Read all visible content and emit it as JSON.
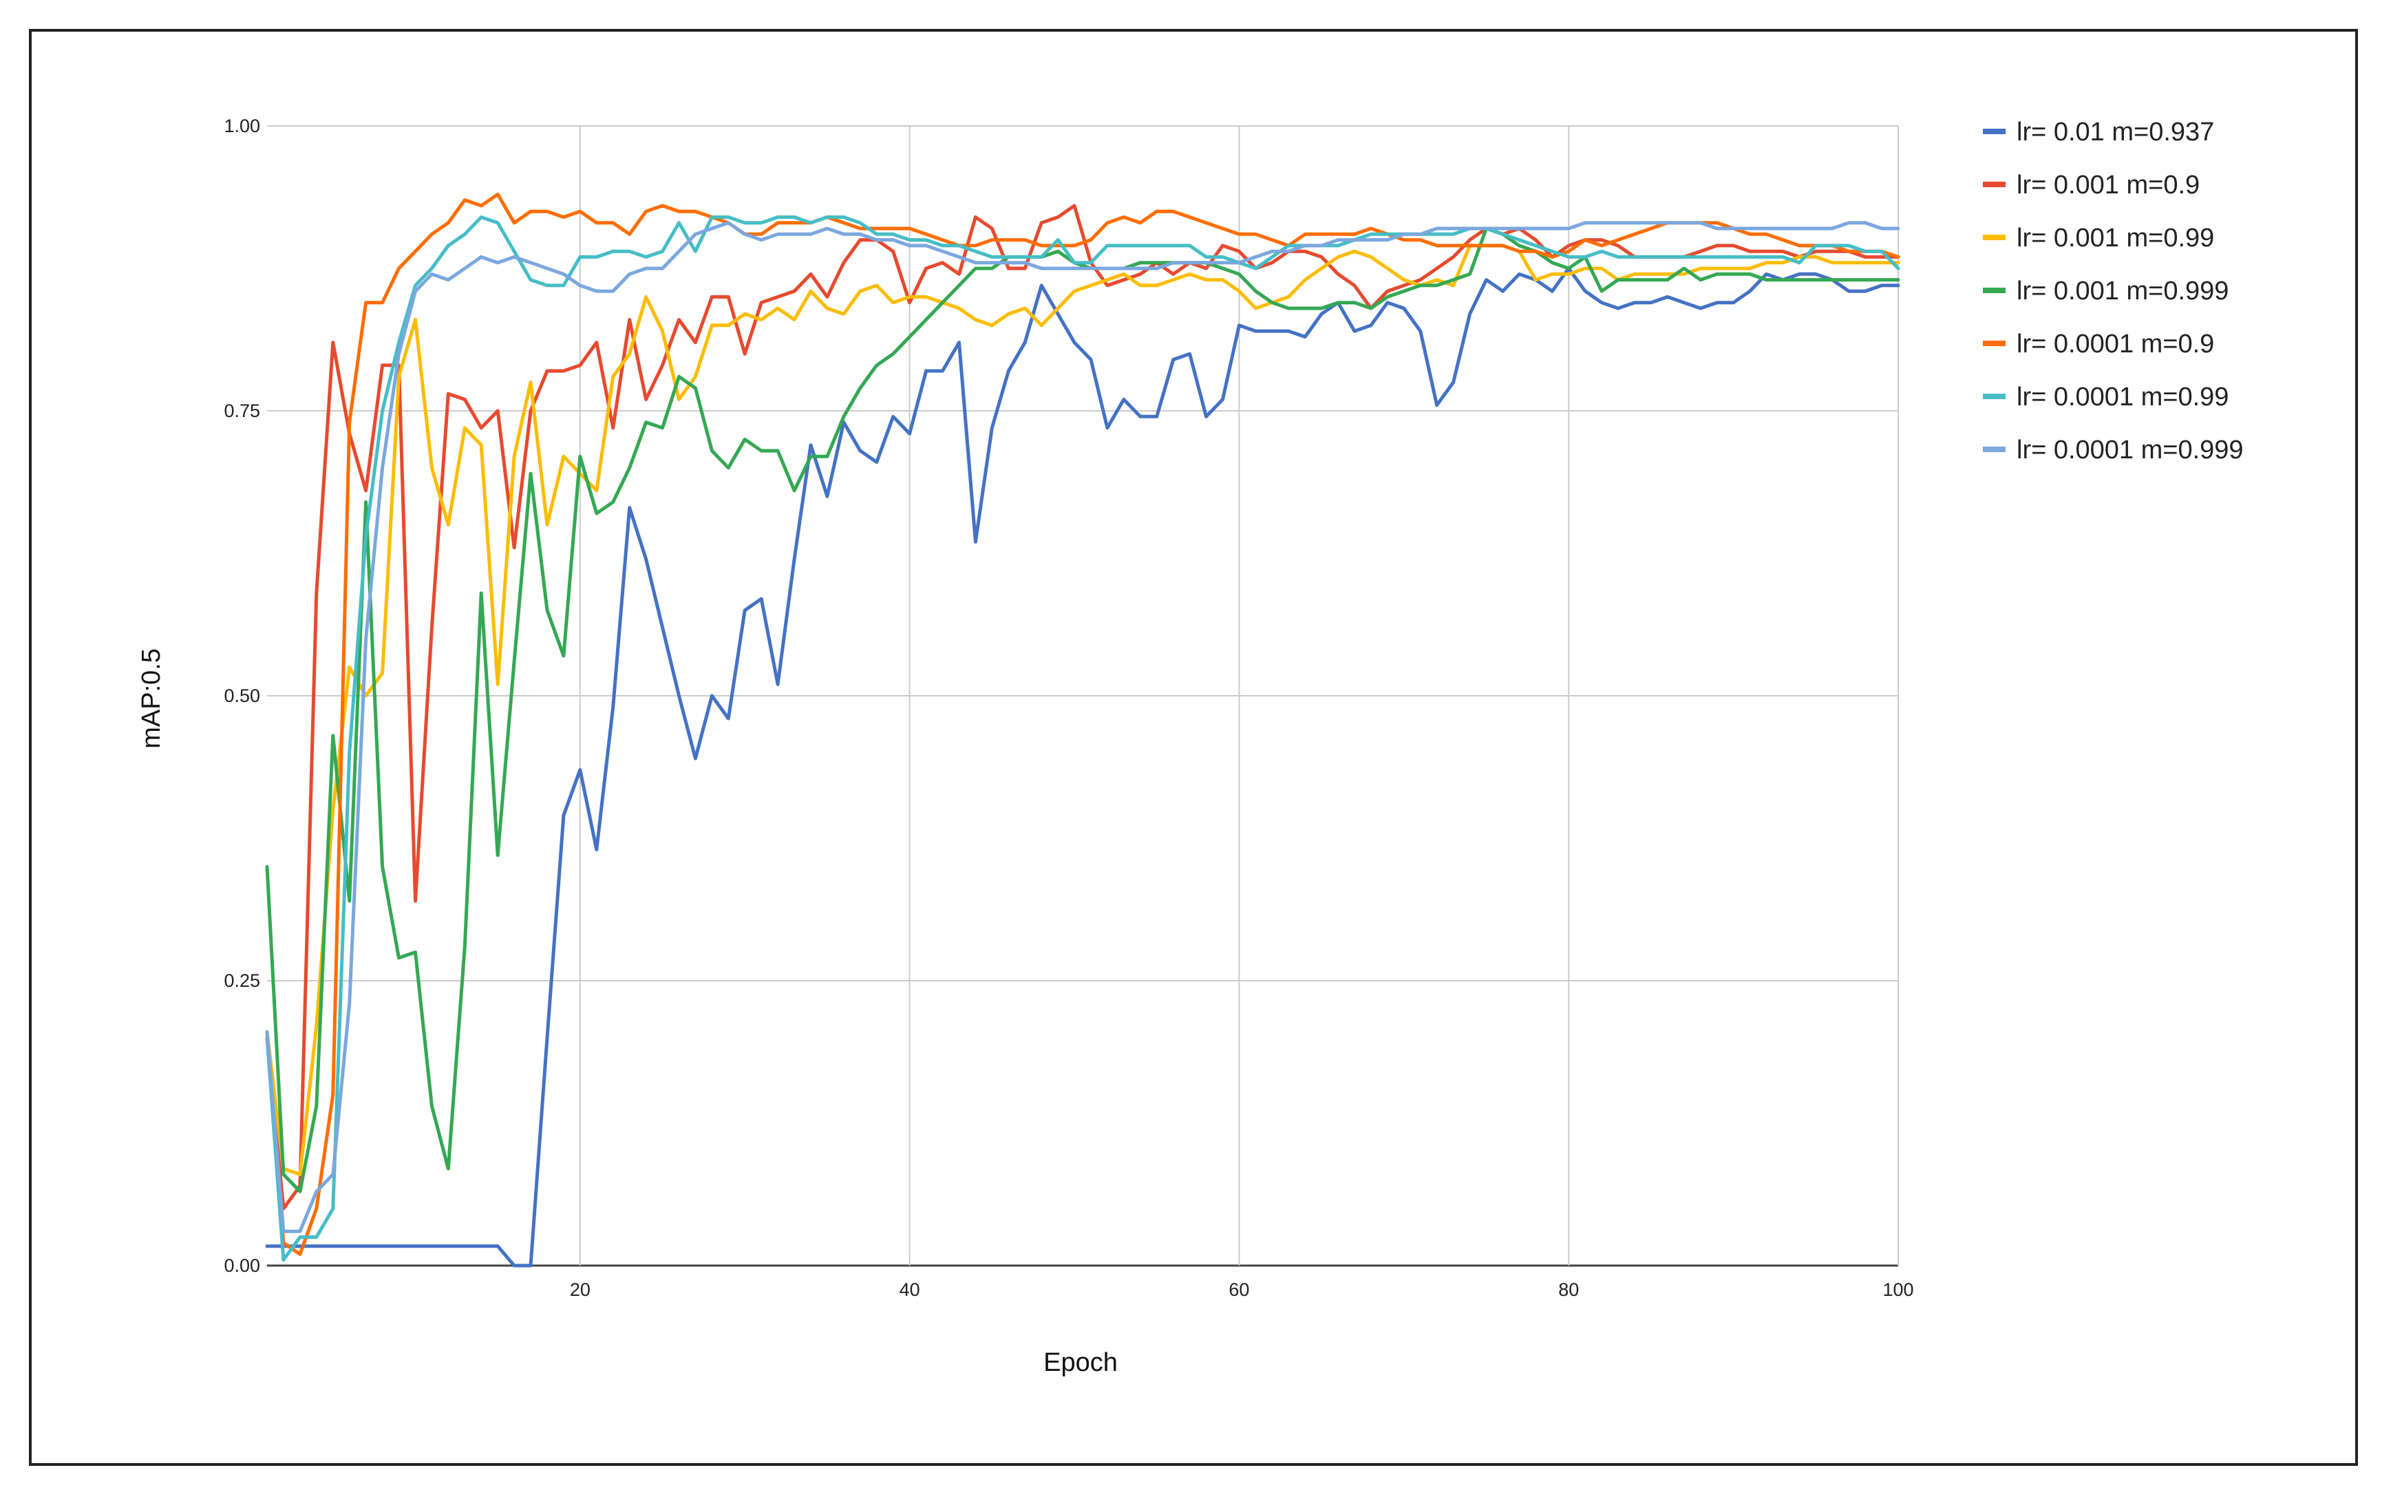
{
  "chart_data": {
    "type": "line",
    "title": "",
    "xlabel": "Epoch",
    "ylabel": "mAP:0.5",
    "xlim": [
      1,
      100
    ],
    "ylim": [
      0,
      1
    ],
    "x_ticks": [
      20,
      40,
      60,
      80,
      100
    ],
    "x_tick_labels": [
      "20",
      "40",
      "60",
      "80",
      "100"
    ],
    "y_ticks": [
      0,
      0.25,
      0.5,
      0.75,
      1.0
    ],
    "y_tick_labels": [
      "0.00",
      "0.25",
      "0.50",
      "0.75",
      "1.00"
    ],
    "grid": true,
    "legend_position": "right",
    "x": [
      1,
      2,
      3,
      4,
      5,
      6,
      7,
      8,
      9,
      10,
      11,
      12,
      13,
      14,
      15,
      16,
      17,
      18,
      19,
      20,
      21,
      22,
      23,
      24,
      25,
      26,
      27,
      28,
      29,
      30,
      31,
      32,
      33,
      34,
      35,
      36,
      37,
      38,
      39,
      40,
      41,
      42,
      43,
      44,
      45,
      46,
      47,
      48,
      49,
      50,
      51,
      52,
      53,
      54,
      55,
      56,
      57,
      58,
      59,
      60,
      61,
      62,
      63,
      64,
      65,
      66,
      67,
      68,
      69,
      70,
      71,
      72,
      73,
      74,
      75,
      76,
      77,
      78,
      79,
      80,
      81,
      82,
      83,
      84,
      85,
      86,
      87,
      88,
      89,
      90,
      91,
      92,
      93,
      94,
      95,
      96,
      97,
      98,
      99,
      100
    ],
    "series": [
      {
        "name": "lr= 0.01 m=0.937",
        "color": "#4472c4",
        "values": [
          0.017,
          0.017,
          0.017,
          0.017,
          0.017,
          0.017,
          0.017,
          0.017,
          0.017,
          0.017,
          0.017,
          0.017,
          0.017,
          0.017,
          0.017,
          0.0,
          0.0,
          0.2,
          0.395,
          0.435,
          0.365,
          0.49,
          0.665,
          0.62,
          0.56,
          0.5,
          0.445,
          0.5,
          0.48,
          0.575,
          0.585,
          0.51,
          0.62,
          0.72,
          0.675,
          0.74,
          0.715,
          0.705,
          0.745,
          0.73,
          0.785,
          0.785,
          0.81,
          0.635,
          0.735,
          0.785,
          0.81,
          0.86,
          0.835,
          0.81,
          0.795,
          0.735,
          0.76,
          0.745,
          0.745,
          0.795,
          0.8,
          0.745,
          0.76,
          0.825,
          0.82,
          0.82,
          0.82,
          0.815,
          0.835,
          0.845,
          0.82,
          0.825,
          0.845,
          0.84,
          0.82,
          0.755,
          0.775,
          0.835,
          0.865,
          0.855,
          0.87,
          0.865,
          0.855,
          0.875,
          0.855,
          0.845,
          0.84,
          0.845,
          0.845,
          0.85,
          0.845,
          0.84,
          0.845,
          0.845,
          0.855,
          0.87,
          0.865,
          0.87,
          0.87,
          0.865,
          0.855,
          0.855,
          0.86,
          0.86
        ]
      },
      {
        "name": "lr= 0.001 m=0.9",
        "color": "#e64a2f",
        "values": [
          0.2,
          0.05,
          0.07,
          0.59,
          0.81,
          0.73,
          0.68,
          0.79,
          0.79,
          0.32,
          0.56,
          0.765,
          0.76,
          0.735,
          0.75,
          0.63,
          0.75,
          0.785,
          0.785,
          0.79,
          0.81,
          0.735,
          0.83,
          0.76,
          0.79,
          0.83,
          0.81,
          0.85,
          0.85,
          0.8,
          0.845,
          0.85,
          0.855,
          0.87,
          0.85,
          0.88,
          0.9,
          0.9,
          0.89,
          0.845,
          0.875,
          0.88,
          0.87,
          0.92,
          0.91,
          0.875,
          0.875,
          0.915,
          0.92,
          0.93,
          0.88,
          0.86,
          0.865,
          0.87,
          0.88,
          0.87,
          0.88,
          0.875,
          0.895,
          0.89,
          0.875,
          0.88,
          0.89,
          0.89,
          0.885,
          0.87,
          0.86,
          0.84,
          0.855,
          0.86,
          0.865,
          0.875,
          0.885,
          0.9,
          0.91,
          0.905,
          0.91,
          0.9,
          0.885,
          0.895,
          0.9,
          0.9,
          0.895,
          0.885,
          0.885,
          0.885,
          0.885,
          0.89,
          0.895,
          0.895,
          0.89,
          0.89,
          0.89,
          0.885,
          0.89,
          0.89,
          0.89,
          0.885,
          0.885,
          0.885
        ]
      },
      {
        "name": "lr= 0.001 m=0.99",
        "color": "#fbbc04",
        "values": [
          0.205,
          0.085,
          0.08,
          0.21,
          0.4,
          0.525,
          0.5,
          0.52,
          0.78,
          0.83,
          0.7,
          0.65,
          0.735,
          0.72,
          0.51,
          0.71,
          0.775,
          0.65,
          0.71,
          0.695,
          0.68,
          0.78,
          0.8,
          0.85,
          0.82,
          0.76,
          0.78,
          0.825,
          0.825,
          0.835,
          0.83,
          0.84,
          0.83,
          0.855,
          0.84,
          0.835,
          0.855,
          0.86,
          0.845,
          0.85,
          0.85,
          0.845,
          0.84,
          0.83,
          0.825,
          0.835,
          0.84,
          0.825,
          0.84,
          0.855,
          0.86,
          0.865,
          0.87,
          0.86,
          0.86,
          0.865,
          0.87,
          0.865,
          0.865,
          0.855,
          0.84,
          0.845,
          0.85,
          0.865,
          0.875,
          0.885,
          0.89,
          0.885,
          0.875,
          0.865,
          0.86,
          0.865,
          0.86,
          0.895,
          0.895,
          0.895,
          0.89,
          0.865,
          0.87,
          0.87,
          0.875,
          0.875,
          0.865,
          0.87,
          0.87,
          0.87,
          0.87,
          0.875,
          0.875,
          0.875,
          0.875,
          0.88,
          0.88,
          0.885,
          0.885,
          0.88,
          0.88,
          0.88,
          0.88,
          0.88
        ]
      },
      {
        "name": "lr= 0.001 m=0.999",
        "color": "#34a853",
        "values": [
          0.35,
          0.08,
          0.065,
          0.14,
          0.465,
          0.32,
          0.67,
          0.35,
          0.27,
          0.275,
          0.14,
          0.085,
          0.28,
          0.59,
          0.36,
          0.53,
          0.695,
          0.575,
          0.535,
          0.71,
          0.66,
          0.67,
          0.7,
          0.74,
          0.735,
          0.78,
          0.77,
          0.715,
          0.7,
          0.725,
          0.715,
          0.715,
          0.68,
          0.71,
          0.71,
          0.745,
          0.77,
          0.79,
          0.8,
          0.815,
          0.83,
          0.845,
          0.86,
          0.875,
          0.875,
          0.885,
          0.885,
          0.885,
          0.89,
          0.88,
          0.875,
          0.875,
          0.875,
          0.88,
          0.88,
          0.88,
          0.88,
          0.88,
          0.875,
          0.87,
          0.855,
          0.845,
          0.84,
          0.84,
          0.84,
          0.845,
          0.845,
          0.84,
          0.85,
          0.855,
          0.86,
          0.86,
          0.865,
          0.87,
          0.91,
          0.905,
          0.895,
          0.89,
          0.88,
          0.875,
          0.885,
          0.855,
          0.865,
          0.865,
          0.865,
          0.865,
          0.875,
          0.865,
          0.87,
          0.87,
          0.87,
          0.865,
          0.865,
          0.865,
          0.865,
          0.865,
          0.865,
          0.865,
          0.865,
          0.865
        ]
      },
      {
        "name": "lr= 0.0001 m=0.9",
        "color": "#ff6d01",
        "values": [
          0.2,
          0.02,
          0.01,
          0.05,
          0.15,
          0.74,
          0.845,
          0.845,
          0.875,
          0.89,
          0.905,
          0.915,
          0.935,
          0.93,
          0.94,
          0.915,
          0.925,
          0.925,
          0.92,
          0.925,
          0.915,
          0.915,
          0.905,
          0.925,
          0.93,
          0.925,
          0.925,
          0.92,
          0.915,
          0.905,
          0.905,
          0.915,
          0.915,
          0.915,
          0.92,
          0.915,
          0.91,
          0.91,
          0.91,
          0.91,
          0.905,
          0.9,
          0.895,
          0.895,
          0.9,
          0.9,
          0.9,
          0.895,
          0.895,
          0.895,
          0.9,
          0.915,
          0.92,
          0.915,
          0.925,
          0.925,
          0.92,
          0.915,
          0.91,
          0.905,
          0.905,
          0.9,
          0.895,
          0.905,
          0.905,
          0.905,
          0.905,
          0.91,
          0.905,
          0.9,
          0.9,
          0.895,
          0.895,
          0.895,
          0.895,
          0.895,
          0.89,
          0.89,
          0.885,
          0.89,
          0.9,
          0.895,
          0.9,
          0.905,
          0.91,
          0.915,
          0.915,
          0.915,
          0.915,
          0.91,
          0.905,
          0.905,
          0.9,
          0.895,
          0.895,
          0.895,
          0.89,
          0.89,
          0.89,
          0.885
        ]
      },
      {
        "name": "lr= 0.0001 m=0.99",
        "color": "#46bdc6",
        "values": [
          0.2,
          0.005,
          0.025,
          0.025,
          0.05,
          0.45,
          0.64,
          0.75,
          0.81,
          0.86,
          0.875,
          0.895,
          0.905,
          0.92,
          0.915,
          0.89,
          0.865,
          0.86,
          0.86,
          0.885,
          0.885,
          0.89,
          0.89,
          0.885,
          0.89,
          0.915,
          0.89,
          0.92,
          0.92,
          0.915,
          0.915,
          0.92,
          0.92,
          0.915,
          0.92,
          0.92,
          0.915,
          0.905,
          0.905,
          0.9,
          0.9,
          0.895,
          0.895,
          0.89,
          0.885,
          0.885,
          0.885,
          0.885,
          0.9,
          0.88,
          0.88,
          0.895,
          0.895,
          0.895,
          0.895,
          0.895,
          0.895,
          0.885,
          0.885,
          0.88,
          0.875,
          0.885,
          0.895,
          0.895,
          0.895,
          0.895,
          0.9,
          0.905,
          0.905,
          0.905,
          0.905,
          0.905,
          0.905,
          0.91,
          0.91,
          0.905,
          0.9,
          0.895,
          0.89,
          0.885,
          0.885,
          0.89,
          0.885,
          0.885,
          0.885,
          0.885,
          0.885,
          0.885,
          0.885,
          0.885,
          0.885,
          0.885,
          0.885,
          0.88,
          0.895,
          0.895,
          0.895,
          0.89,
          0.89,
          0.875
        ]
      },
      {
        "name": "lr= 0.0001 m=0.999",
        "color": "#7ba7de",
        "values": [
          0.205,
          0.03,
          0.03,
          0.065,
          0.08,
          0.23,
          0.55,
          0.7,
          0.8,
          0.855,
          0.87,
          0.865,
          0.875,
          0.885,
          0.88,
          0.885,
          0.88,
          0.875,
          0.87,
          0.86,
          0.855,
          0.855,
          0.87,
          0.875,
          0.875,
          0.89,
          0.905,
          0.91,
          0.915,
          0.905,
          0.9,
          0.905,
          0.905,
          0.905,
          0.91,
          0.905,
          0.905,
          0.9,
          0.9,
          0.895,
          0.895,
          0.89,
          0.885,
          0.88,
          0.88,
          0.88,
          0.88,
          0.875,
          0.875,
          0.875,
          0.875,
          0.875,
          0.875,
          0.875,
          0.875,
          0.88,
          0.88,
          0.88,
          0.88,
          0.88,
          0.885,
          0.89,
          0.89,
          0.895,
          0.895,
          0.9,
          0.9,
          0.9,
          0.9,
          0.905,
          0.905,
          0.91,
          0.91,
          0.91,
          0.91,
          0.91,
          0.91,
          0.91,
          0.91,
          0.91,
          0.915,
          0.915,
          0.915,
          0.915,
          0.915,
          0.915,
          0.915,
          0.915,
          0.91,
          0.91,
          0.91,
          0.91,
          0.91,
          0.91,
          0.91,
          0.91,
          0.915,
          0.915,
          0.91,
          0.91
        ]
      }
    ]
  }
}
